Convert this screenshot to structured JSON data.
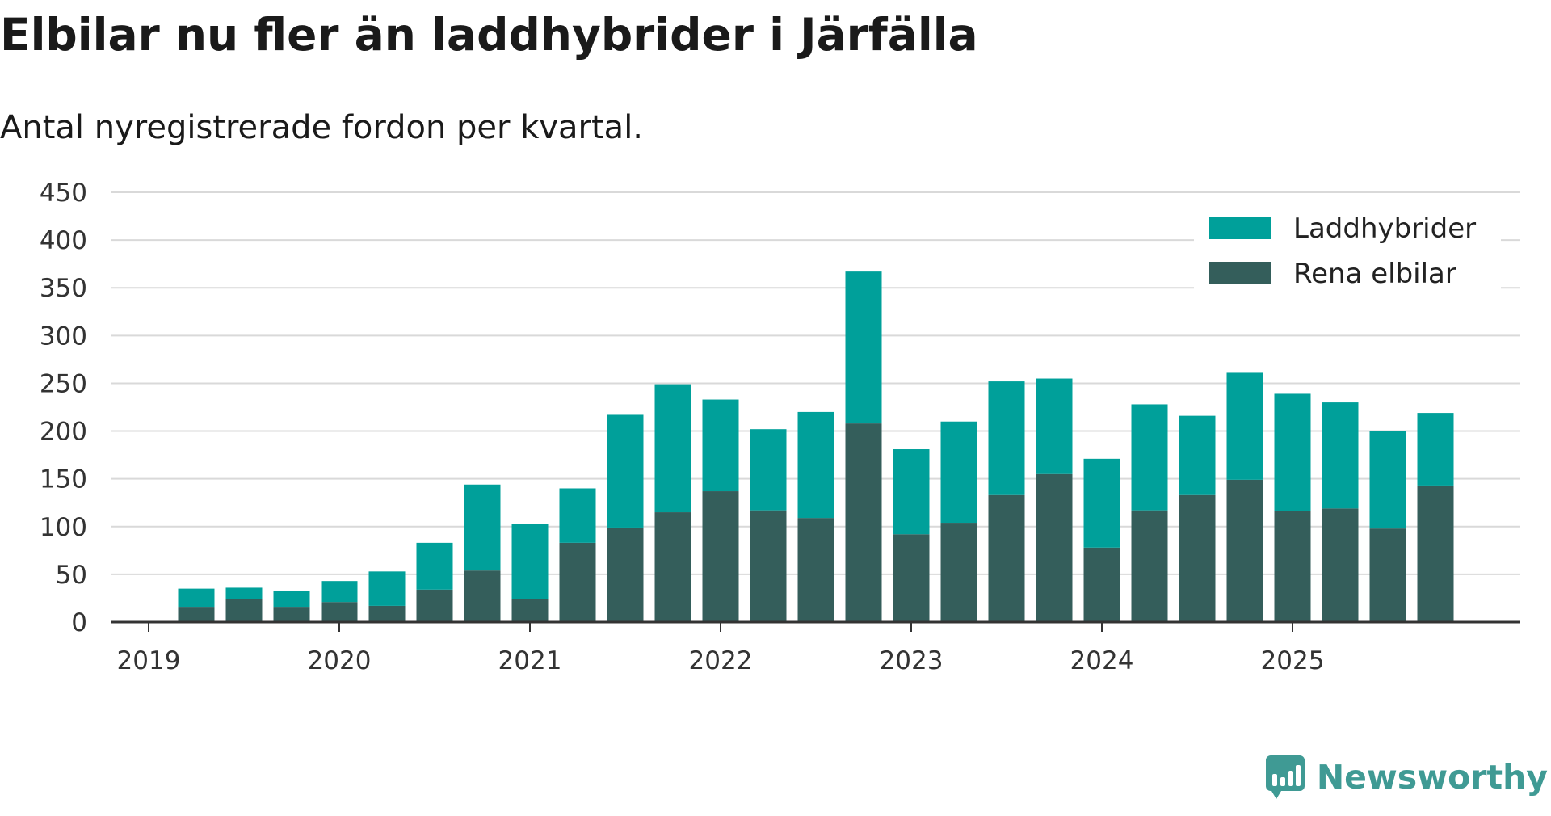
{
  "header": {
    "title": "Elbilar nu fler än laddhybrider i Järfälla",
    "subtitle": "Antal nyregistrerade fordon per kvartal."
  },
  "brand": {
    "name": "Newsworthy",
    "icon": "newsworthy-logo-icon"
  },
  "colors": {
    "laddhybrider": "#00a09a",
    "rena_elbilar": "#345e5b",
    "grid": "#d9d9d9",
    "axis": "#333333"
  },
  "chart_data": {
    "type": "bar",
    "stacked": true,
    "title": "Elbilar nu fler än laddhybrider i Järfälla",
    "subtitle": "Antal nyregistrerade fordon per kvartal.",
    "xlabel": "",
    "ylabel": "",
    "ylim": [
      0,
      450
    ],
    "yticks": [
      0,
      50,
      100,
      150,
      200,
      250,
      300,
      350,
      400,
      450
    ],
    "xticks": [
      "2019",
      "2020",
      "2021",
      "2022",
      "2023",
      "2024",
      "2025"
    ],
    "grid": true,
    "legend_position": "top-right",
    "categories": [
      "2019 Q2",
      "2019 Q3",
      "2019 Q4",
      "2020 Q1",
      "2020 Q2",
      "2020 Q3",
      "2020 Q4",
      "2021 Q1",
      "2021 Q2",
      "2021 Q3",
      "2021 Q4",
      "2022 Q1",
      "2022 Q2",
      "2022 Q3",
      "2022 Q4",
      "2023 Q1",
      "2023 Q2",
      "2023 Q3",
      "2023 Q4",
      "2024 Q1",
      "2024 Q2",
      "2024 Q3",
      "2024 Q4",
      "2025 Q1",
      "2025 Q2",
      "2025 Q3",
      "2025 Q4"
    ],
    "series": [
      {
        "name": "Rena elbilar",
        "values": [
          16,
          24,
          16,
          21,
          17,
          34,
          54,
          24,
          83,
          99,
          115,
          137,
          117,
          109,
          208,
          92,
          104,
          133,
          155,
          78,
          117,
          133,
          149,
          116,
          119,
          98,
          143
        ]
      },
      {
        "name": "Laddhybrider",
        "values": [
          19,
          12,
          17,
          22,
          36,
          49,
          90,
          79,
          57,
          118,
          134,
          96,
          85,
          111,
          159,
          89,
          106,
          119,
          100,
          93,
          111,
          83,
          112,
          123,
          111,
          102,
          76
        ]
      }
    ],
    "legend": [
      "Laddhybrider",
      "Rena elbilar"
    ]
  }
}
